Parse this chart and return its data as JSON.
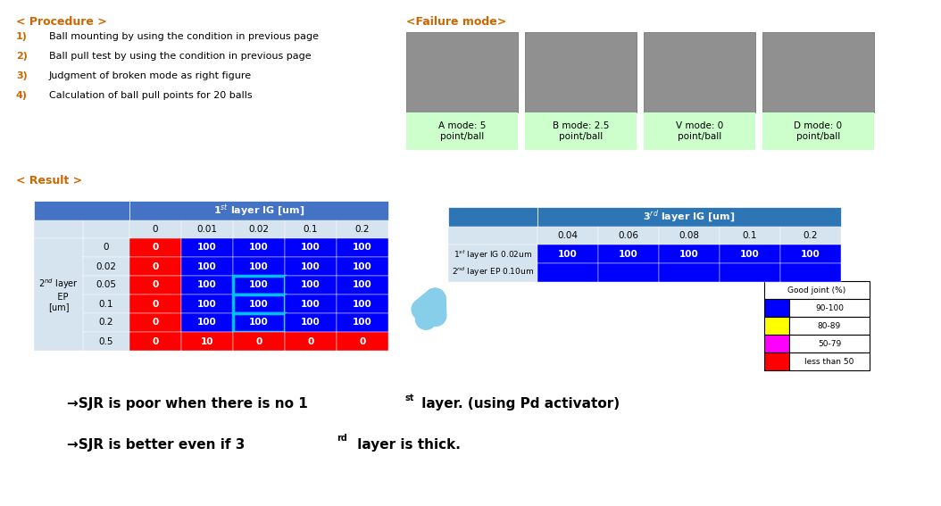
{
  "procedure_title": "< Procedure >",
  "procedure_items": [
    "Ball mounting by using the condition in previous page",
    "Ball pull test by using the condition in previous page",
    "Judgment of broken mode as right figure",
    "Calculation of ball pull points for 20 balls"
  ],
  "failure_mode_title": "<Failure mode>",
  "failure_modes": [
    {
      "label": "A mode: 5\npoint/ball"
    },
    {
      "label": "B mode: 2.5\npoint/ball"
    },
    {
      "label": "V mode: 0\npoint/ball"
    },
    {
      "label": "D mode: 0\npoint/ball"
    }
  ],
  "result_title": "< Result >",
  "table1_col_headers": [
    "0",
    "0.01",
    "0.02",
    "0.1",
    "0.2"
  ],
  "table1_rows": [
    {
      "ep": "0",
      "vals": [
        "0",
        "100",
        "100",
        "100",
        "100"
      ]
    },
    {
      "ep": "0.02",
      "vals": [
        "0",
        "100",
        "100",
        "100",
        "100"
      ]
    },
    {
      "ep": "0.05",
      "vals": [
        "0",
        "100",
        "100",
        "100",
        "100"
      ]
    },
    {
      "ep": "0.1",
      "vals": [
        "0",
        "100",
        "100",
        "100",
        "100"
      ]
    },
    {
      "ep": "0.2",
      "vals": [
        "0",
        "100",
        "100",
        "100",
        "100"
      ]
    },
    {
      "ep": "0.5",
      "vals": [
        "0",
        "10",
        "0",
        "0",
        "0"
      ]
    }
  ],
  "table1_cell_colors": [
    [
      "red",
      "blue",
      "blue",
      "blue",
      "blue"
    ],
    [
      "red",
      "blue",
      "blue",
      "blue",
      "blue"
    ],
    [
      "red",
      "blue",
      "blue",
      "blue",
      "blue"
    ],
    [
      "red",
      "blue",
      "blue",
      "blue",
      "blue"
    ],
    [
      "red",
      "blue",
      "blue",
      "blue",
      "blue"
    ],
    [
      "red",
      "red",
      "red",
      "red",
      "red"
    ]
  ],
  "table1_highlighted_rows": [
    2,
    3,
    4
  ],
  "table1_highlighted_col": 2,
  "table2_col_headers": [
    "0.04",
    "0.06",
    "0.08",
    "0.1",
    "0.2"
  ],
  "table2_row1_vals": [
    "100",
    "100",
    "100",
    "100",
    "100"
  ],
  "header_blue": "#4472C4",
  "header_dark_blue": "#2E75B6",
  "cell_blue": "#0000FF",
  "cell_red": "#FF0000",
  "arrow_color": "#87CEEB",
  "green_bg": "#CCFFCC",
  "light_blue_cell": "#D6E4F0",
  "orange_text": "#CC6600"
}
